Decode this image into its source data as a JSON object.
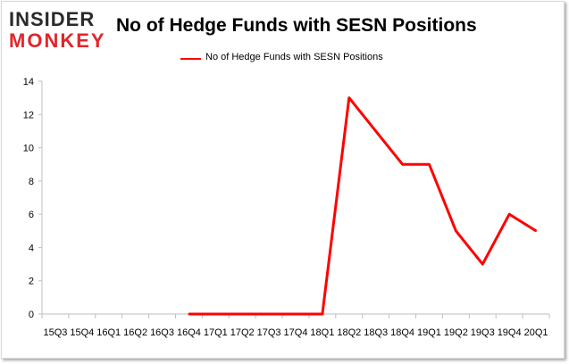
{
  "branding": {
    "logo_line1": "INSIDER",
    "logo_line2": "MONKEY"
  },
  "colors": {
    "series": "#ff0000",
    "logo_red": "#e0262b",
    "axis": "#bfbfbf"
  },
  "chart_data": {
    "type": "line",
    "title": "No of Hedge Funds with SESN Positions",
    "xlabel": "",
    "ylabel": "",
    "ylim": [
      0,
      14
    ],
    "yticks": [
      0,
      2,
      4,
      6,
      8,
      10,
      12,
      14
    ],
    "grid": false,
    "legend_position": "top-center",
    "categories": [
      "15Q3",
      "15Q4",
      "16Q1",
      "16Q2",
      "16Q3",
      "16Q4",
      "17Q1",
      "17Q2",
      "17Q3",
      "17Q4",
      "18Q1",
      "18Q2",
      "18Q3",
      "18Q4",
      "19Q1",
      "19Q2",
      "19Q3",
      "19Q4",
      "20Q1"
    ],
    "series": [
      {
        "name": "No of Hedge Funds with SESN Positions",
        "values": [
          null,
          null,
          null,
          null,
          null,
          0,
          0,
          0,
          0,
          0,
          0,
          13,
          11,
          9,
          9,
          5,
          3,
          6,
          5
        ]
      }
    ]
  }
}
